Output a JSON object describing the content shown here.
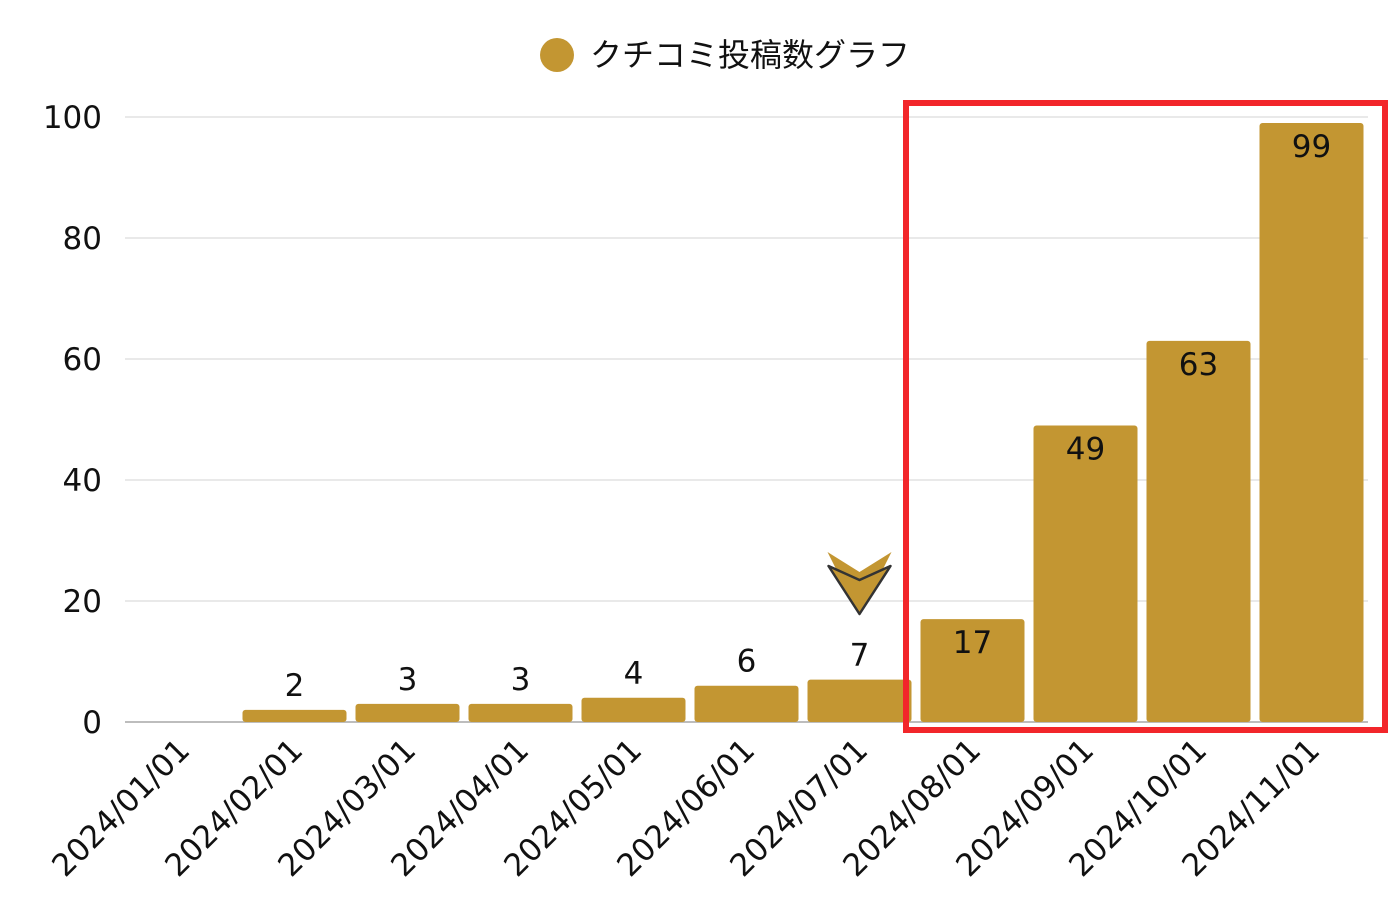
{
  "chart_data": {
    "type": "bar",
    "title": "",
    "xlabel": "",
    "ylabel": "",
    "categories": [
      "2024/01/01",
      "2024/02/01",
      "2024/03/01",
      "2024/04/01",
      "2024/05/01",
      "2024/06/01",
      "2024/07/01",
      "2024/08/01",
      "2024/09/01",
      "2024/10/01",
      "2024/11/01"
    ],
    "series": [
      {
        "name": "クチコミ投稿数グラフ",
        "values": [
          0,
          2,
          3,
          3,
          4,
          6,
          7,
          17,
          49,
          63,
          99
        ],
        "color": "#c39632"
      }
    ],
    "data_labels": [
      "",
      "2",
      "3",
      "3",
      "4",
      "6",
      "7",
      "17",
      "49",
      "63",
      "99"
    ],
    "ylim": [
      0,
      100
    ],
    "yticks": [
      "0",
      "20",
      "40",
      "60",
      "80",
      "100"
    ],
    "grid": true,
    "legend_position": "top-center",
    "annotations": {
      "highlight_box_color": "#f2262a",
      "highlight_categories": [
        "2024/08/01",
        "2024/11/01"
      ],
      "marker_icon": "chevron-down-icon",
      "marker_category": "2024/07/01"
    }
  }
}
